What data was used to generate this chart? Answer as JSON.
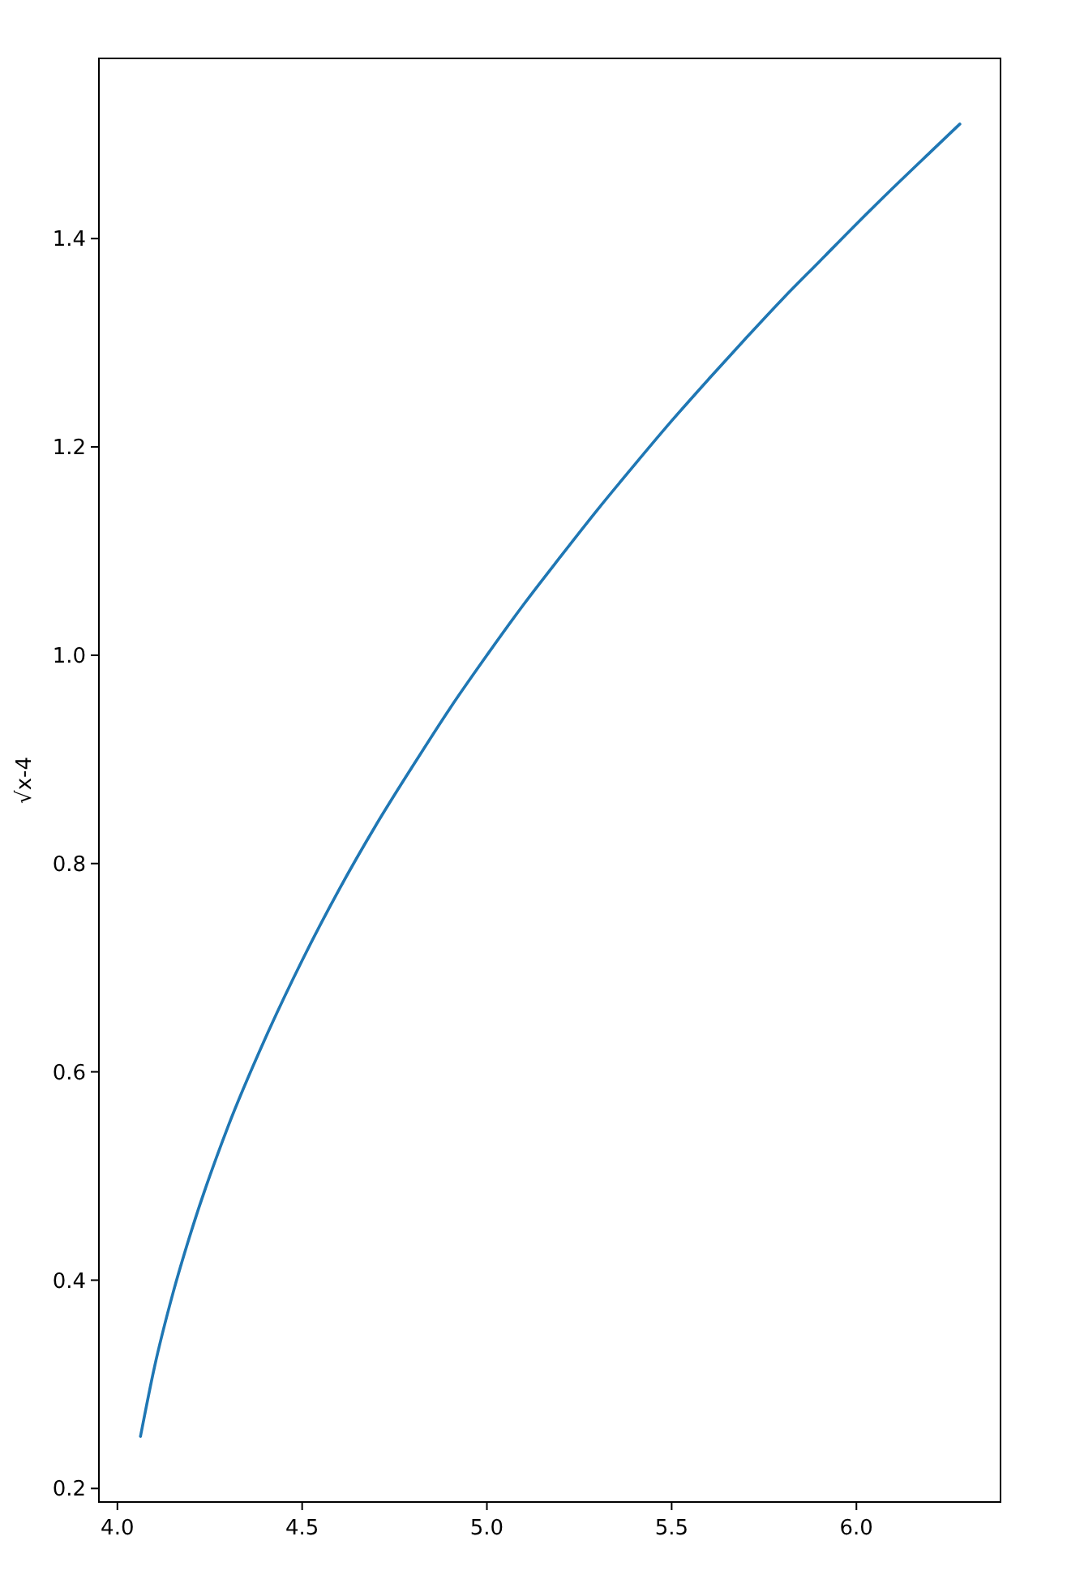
{
  "chart_data": {
    "type": "line",
    "ylabel": "√x-4",
    "x": [
      4.0625,
      4.1,
      4.15,
      4.2,
      4.3,
      4.4,
      4.5,
      4.6,
      4.7,
      4.8,
      4.9,
      5.0,
      5.1,
      5.2,
      5.3,
      5.4,
      5.5,
      5.6,
      5.7,
      5.8,
      5.9,
      6.0,
      6.1,
      6.2,
      6.28
    ],
    "series": [
      {
        "color": "#1f77b4",
        "values": [
          0.25,
          0.316,
          0.387,
          0.447,
          0.548,
          0.632,
          0.707,
          0.775,
          0.837,
          0.894,
          0.949,
          1.0,
          1.049,
          1.095,
          1.14,
          1.183,
          1.225,
          1.265,
          1.304,
          1.342,
          1.378,
          1.414,
          1.449,
          1.483,
          1.51
        ]
      }
    ],
    "xlim": [
      3.95,
      6.39
    ],
    "ylim": [
      0.187,
      1.573
    ],
    "xticks": [
      {
        "value": 4,
        "label": "4.0"
      },
      {
        "value": 4.5,
        "label": "4.5"
      },
      {
        "value": 5,
        "label": "5.0"
      },
      {
        "value": 5.5,
        "label": "5.5"
      },
      {
        "value": 6,
        "label": "6.0"
      }
    ],
    "yticks": [
      {
        "value": 0.2,
        "label": "0.2"
      },
      {
        "value": 0.4,
        "label": "0.4"
      },
      {
        "value": 0.6,
        "label": "0.6"
      },
      {
        "value": 0.8,
        "label": "0.8"
      },
      {
        "value": 1.0,
        "label": "1.0"
      },
      {
        "value": 1.2,
        "label": "1.2"
      },
      {
        "value": 1.4,
        "label": "1.4"
      }
    ],
    "grid": false,
    "marker": "none",
    "line_style": "solid"
  }
}
